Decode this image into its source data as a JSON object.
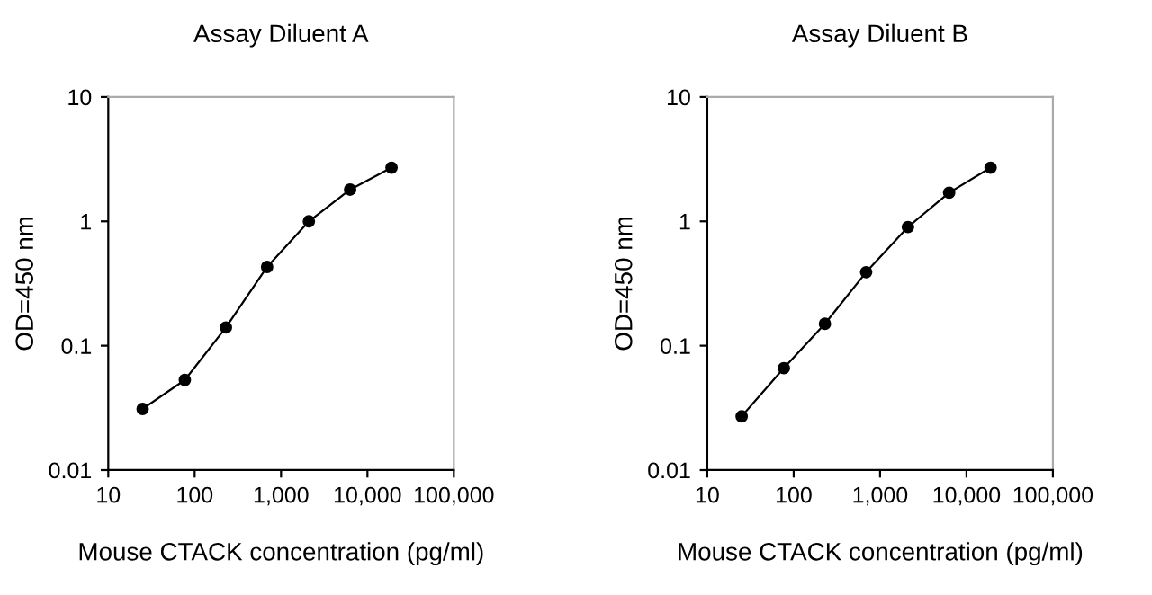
{
  "chart_data": [
    {
      "type": "line",
      "title": "Assay Diluent A",
      "xlabel": "Mouse CTACK concentration (pg/ml)",
      "ylabel": "OD=450 nm",
      "log": "xy",
      "marker": "circle",
      "line_style": "solid",
      "grid": false,
      "legend": false,
      "x": [
        25,
        77,
        230,
        690,
        2100,
        6300,
        19000
      ],
      "series": [
        {
          "color": "#000000",
          "values": [
            0.031,
            0.053,
            0.14,
            0.43,
            1.0,
            1.8,
            2.7
          ]
        }
      ],
      "xlim": [
        10,
        100000
      ],
      "xticks": [
        10,
        100,
        {
          "value": 1000,
          "label": "1,000"
        },
        {
          "value": 10000,
          "label": "10,000"
        },
        {
          "value": 100000,
          "label": "100,000"
        }
      ],
      "ylim": [
        0.01,
        10
      ],
      "yticks": [
        0.01,
        0.1,
        1,
        10
      ]
    },
    {
      "type": "line",
      "title": "Assay Diluent B",
      "xlabel": "Mouse CTACK concentration (pg/ml)",
      "ylabel": "OD=450 nm",
      "log": "xy",
      "marker": "circle",
      "line_style": "solid",
      "grid": false,
      "legend": false,
      "x": [
        25,
        77,
        230,
        690,
        2100,
        6300,
        19000
      ],
      "series": [
        {
          "color": "#000000",
          "values": [
            0.027,
            0.066,
            0.15,
            0.39,
            0.9,
            1.7,
            2.7
          ]
        }
      ],
      "xlim": [
        10,
        100000
      ],
      "xticks": [
        10,
        100,
        {
          "value": 1000,
          "label": "1,000"
        },
        {
          "value": 10000,
          "label": "10,000"
        },
        {
          "value": 100000,
          "label": "100,000"
        }
      ],
      "ylim": [
        0.01,
        10
      ],
      "yticks": [
        0.01,
        0.1,
        1,
        10
      ]
    }
  ]
}
